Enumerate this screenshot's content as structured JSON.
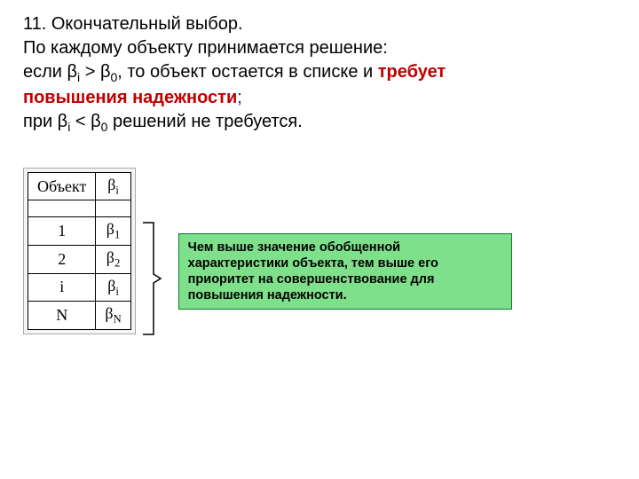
{
  "heading": {
    "line1": "11. Окончательный выбор.",
    "line2": "По каждому объекту  принимается решение:",
    "line3_prefix": "если β",
    "line3_sub1": "i",
    "line3_mid": " > β",
    "line3_sub2": "0",
    "line3_tail": ", то объект остается в списке и ",
    "line3_emph_a": "требует",
    "line4_emph_b": "повышения надежности",
    "line4_tail": ";",
    "line5_prefix": "при β",
    "line5_sub1": "i",
    "line5_mid": " < β",
    "line5_sub2": "0",
    "line5_tail": " решений не требуется.",
    "emph_color": "#c00000",
    "blue_color": "#003399"
  },
  "table": {
    "header_col1": "Объект",
    "header_col2_main": "β",
    "header_col2_sub": "i",
    "rows": [
      {
        "obj": "1",
        "beta_main": "β",
        "beta_sub": "1"
      },
      {
        "obj": "2",
        "beta_main": "β",
        "beta_sub": "2"
      },
      {
        "obj": "i",
        "beta_main": "β",
        "beta_sub": "i"
      },
      {
        "obj": "N",
        "beta_main": "β",
        "beta_sub": "N"
      }
    ],
    "border_color": "#000000",
    "wrap_bg": "#f4f4f4",
    "cell_bg": "#ffffff",
    "font_size": 18
  },
  "bracket": {
    "stroke": "#000000",
    "width": 24,
    "height": 130
  },
  "note": {
    "text": "Чем выше значение обобщенной характеристики объекта, тем выше его приоритет на совершенствование для повышения надежности.",
    "bg_color": "#7ee08a",
    "border_color": "#0a7a2a",
    "text_color": "#000000",
    "font_size": 14.5
  }
}
